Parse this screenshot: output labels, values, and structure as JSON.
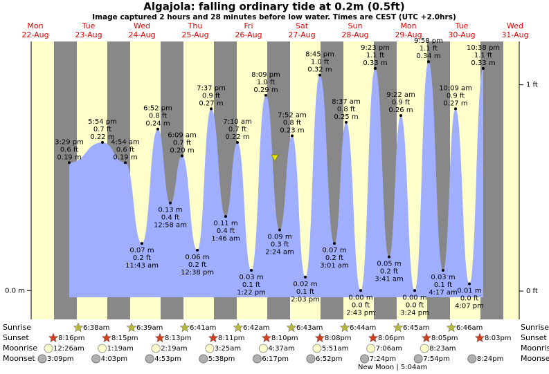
{
  "title": "Algajola: falling  ordinary tide at 0.2m (0.5ft)",
  "subtitle": "Image captured 2 hours and 28 minutes before low water. Times are CEST (UTC +2.0hrs)",
  "chart_data": {
    "type": "area",
    "color": "#a0aeff",
    "days": [
      {
        "weekday": "Mon",
        "date": "22-Aug"
      },
      {
        "weekday": "Tue",
        "date": "23-Aug"
      },
      {
        "weekday": "Wed",
        "date": "24-Aug"
      },
      {
        "weekday": "Thu",
        "date": "25-Aug"
      },
      {
        "weekday": "Fri",
        "date": "26-Aug"
      },
      {
        "weekday": "Sat",
        "date": "27-Aug"
      },
      {
        "weekday": "Sun",
        "date": "28-Aug"
      },
      {
        "weekday": "Mon",
        "date": "29-Aug"
      },
      {
        "weekday": "Tue",
        "date": "30-Aug"
      },
      {
        "weekday": "Wed",
        "date": "31-Aug"
      }
    ],
    "times": [
      "3:29 pm",
      "5:54 pm",
      "4:54 am",
      "11:43 am",
      "6:52 pm",
      "12:58 am",
      "6:09 am",
      "12:38 pm",
      "7:37 pm",
      "1:46 am",
      "7:10 am",
      "1:22 pm",
      "8:09 pm",
      "2:24 am",
      "7:52 am",
      "2:03 pm",
      "8:45 pm",
      "3:01 am",
      "8:37 am",
      "2:43 pm",
      "9:23 pm",
      "3:41 am",
      "9:22 am",
      "3:24 pm",
      "9:58 pm",
      "4:17 am",
      "10:09 am",
      "4:07 pm",
      "10:38 pm"
    ],
    "values": [
      0.19,
      0.22,
      0.19,
      0.07,
      0.24,
      0.13,
      0.2,
      0.06,
      0.27,
      0.11,
      0.22,
      0.03,
      0.29,
      0.09,
      0.23,
      0.02,
      0.32,
      0.07,
      0.25,
      0.0,
      0.33,
      0.05,
      0.26,
      0.0,
      0.34,
      0.03,
      0.27,
      0.01,
      0.33
    ],
    "value_labels": [
      "0.19 m",
      "0.22 m",
      "0.19 m",
      "0.07 m",
      "0.24 m",
      "0.13 m",
      "0.20 m",
      "0.06 m",
      "0.27 m",
      "0.11 m",
      "0.22 m",
      "0.03 m",
      "0.29 m",
      "0.09 m",
      "0.23 m",
      "0.02 m",
      "0.32 m",
      "0.07 m",
      "0.25 m",
      "0.00 m",
      "0.33 m",
      "0.05 m",
      "0.26 m",
      "0.00 m",
      "0.34 m",
      "0.03 m",
      "0.27 m",
      "0.01 m",
      "0.33 m"
    ],
    "ft_labels": [
      "0.6 ft",
      "0.7 ft",
      "0.6 ft",
      "0.2 ft",
      "0.8 ft",
      "0.4 ft",
      "0.7 ft",
      "0.2 ft",
      "0.9 ft",
      "0.4 ft",
      "0.7 ft",
      "0.1 ft",
      "1.0 ft",
      "0.3 ft",
      "0.8 ft",
      "0.1 ft",
      "1.0 ft",
      "0.2 ft",
      "0.8 ft",
      "0.0 ft",
      "1.1 ft",
      "0.2 ft",
      "0.9 ft",
      "0.0 ft",
      "1.1 ft",
      "0.1 ft",
      "0.9 ft",
      "0.0 ft",
      "1.1 ft"
    ],
    "ylim": [
      -0.01,
      0.37
    ],
    "yticks": [
      {
        "value": 0,
        "label": "0.0 m"
      }
    ],
    "y2lim": [
      -0.03,
      1.21
    ],
    "y2ticks": [
      {
        "value": 0,
        "label": "0 ft"
      },
      {
        "value": 1,
        "label": "1 ft"
      }
    ]
  },
  "almanac": {
    "sunrise": {
      "label": "Sunrise",
      "times": [
        "6:38am",
        "6:39am",
        "6:41am",
        "6:42am",
        "6:43am",
        "6:44am",
        "6:45am",
        "6:46am"
      ]
    },
    "sunset": {
      "label": "Sunset",
      "times": [
        "8:16pm",
        "8:15pm",
        "8:13pm",
        "8:11pm",
        "8:10pm",
        "8:08pm",
        "8:06pm",
        "8:05pm",
        "8:03pm"
      ]
    },
    "moonrise": {
      "label": "Moonrise",
      "times": [
        "12:26am",
        "1:19am",
        "2:19am",
        "3:25am",
        "4:37am",
        "5:51am",
        "7:06am",
        "8:23am"
      ]
    },
    "moonset": {
      "label": "Moonset",
      "times": [
        "3:09pm",
        "4:03pm",
        "4:53pm",
        "5:38pm",
        "6:17pm",
        "6:52pm",
        "7:24pm",
        "7:54pm",
        "8:24pm"
      ]
    }
  },
  "moon_phase": "New Moon | 5:04am"
}
